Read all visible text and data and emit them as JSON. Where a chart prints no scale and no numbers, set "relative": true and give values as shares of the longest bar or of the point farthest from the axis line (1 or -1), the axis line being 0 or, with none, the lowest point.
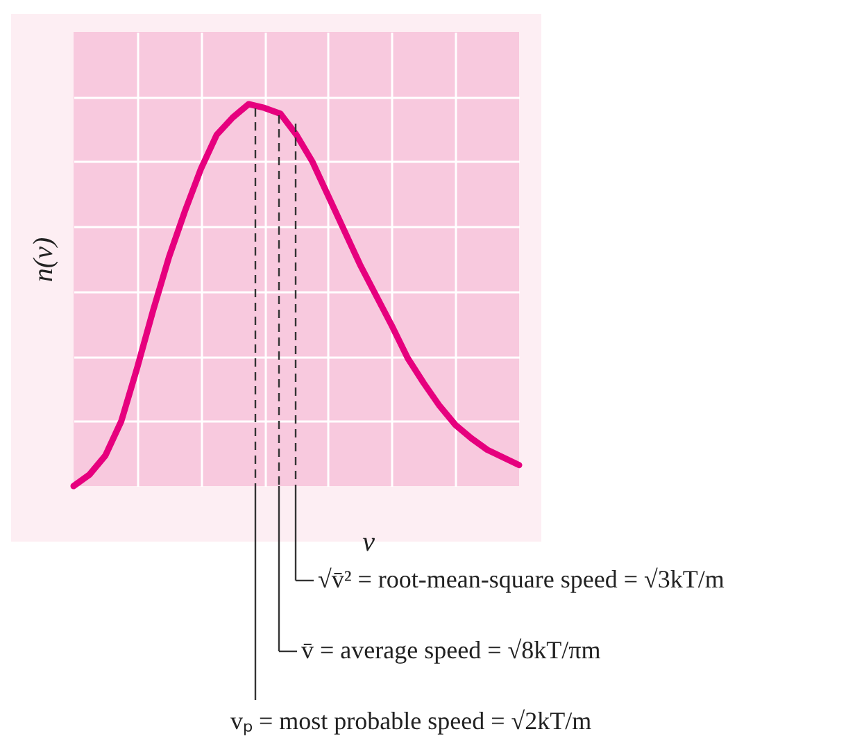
{
  "chart_data": {
    "type": "line",
    "xlabel": "v",
    "ylabel": "n(v)",
    "relative": true,
    "grid": true,
    "categories": [
      null,
      null,
      null,
      null,
      null,
      null,
      null,
      null,
      null,
      null,
      null,
      null,
      null,
      null,
      null,
      null,
      null,
      null,
      null,
      null,
      null,
      null,
      null,
      null,
      null,
      null,
      null,
      null,
      null
    ],
    "series": [
      {
        "color": "#e6007e",
        "values": [
          0,
          0.03,
          0.08,
          0.17,
          0.31,
          0.46,
          0.6,
          0.72,
          0.83,
          0.92,
          0.965,
          1,
          0.99,
          0.975,
          0.92,
          0.85,
          0.76,
          0.67,
          0.58,
          0.5,
          0.42,
          0.335,
          0.27,
          0.21,
          0.16,
          0.125,
          0.095,
          0.075,
          0.055
        ]
      }
    ],
    "annotations": [
      "vₚ = most probable speed = √2kT/m",
      "v̄ = average speed = √8kT/πm",
      "√v̄² = root-mean-square speed = √3kT/m"
    ]
  }
}
